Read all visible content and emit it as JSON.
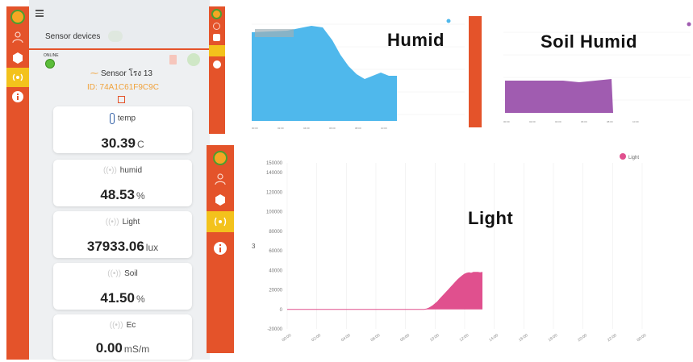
{
  "app": {
    "panel_title": "Sensor devices",
    "status": "ONLINE",
    "device_name": "Sensor โรง 13",
    "device_id": "ID: 74A1C61F9C9C",
    "menu_icon": "hamburger-icon"
  },
  "sidebar": {
    "items": [
      {
        "icon": "logo-icon"
      },
      {
        "icon": "user-icon"
      },
      {
        "icon": "hexagon-icon"
      },
      {
        "icon": "wireless-icon"
      },
      {
        "icon": "info-icon"
      }
    ]
  },
  "cards": [
    {
      "label": "temp",
      "value": "30.39",
      "unit": "C",
      "icon": "thermometer-icon"
    },
    {
      "label": "humid",
      "value": "48.53",
      "unit": "%",
      "icon": "wireless-icon"
    },
    {
      "label": "Light",
      "value": "37933.06",
      "unit": "lux",
      "icon": "wireless-icon"
    },
    {
      "label": "Soil",
      "value": "41.50",
      "unit": "%",
      "icon": "wireless-icon"
    },
    {
      "label": "Ec",
      "value": "0.00",
      "unit": "mS/m",
      "icon": "wireless-icon"
    }
  ],
  "captions": {
    "humid": "Humid",
    "soil": "Soil Humid",
    "light": "Light"
  },
  "colors": {
    "accent": "#e4532a",
    "active": "#f3c21c",
    "humid": "#4fb8ec",
    "soil": "#a05cb0",
    "light": "#e0508e"
  },
  "chart_data": [
    {
      "type": "area",
      "series": [
        {
          "name": "Light",
          "values": [
            0,
            0,
            0,
            0,
            0,
            0,
            0,
            0,
            0,
            0,
            0,
            0,
            0,
            0,
            0,
            0,
            0,
            0,
            0,
            0,
            0,
            0,
            0,
            0,
            0,
            0,
            0,
            0,
            0,
            0,
            0,
            0,
            0,
            0,
            0,
            0,
            0,
            0,
            0,
            0,
            0,
            0,
            0,
            0,
            0,
            0,
            0,
            0,
            0,
            0,
            0,
            0,
            0,
            0,
            0,
            0,
            0,
            0,
            0,
            0,
            0,
            0,
            500,
            1200,
            2500,
            4000,
            6000,
            8000,
            10500,
            13000,
            15500,
            18000,
            20500,
            23000,
            25500,
            28000,
            30500,
            32500,
            34500,
            36000,
            37000,
            37500,
            37000,
            37900,
            37933,
            38000,
            37500,
            37933
          ]
        }
      ],
      "y_ticks": [
        "150000",
        "140000",
        "120000",
        "100000",
        "80000",
        "60000",
        "40000",
        "20000",
        "0",
        "-20000"
      ],
      "x_ticks": [
        "00:00",
        "02:00",
        "04:00",
        "06:00",
        "08:00",
        "10:00",
        "12:00",
        "14:00",
        "16:00",
        "18:00",
        "20:00",
        "22:00",
        "00:00"
      ],
      "ylim": [
        -20000,
        150000
      ],
      "legend": "top-right",
      "extra_label": "3",
      "grid": true
    }
  ]
}
